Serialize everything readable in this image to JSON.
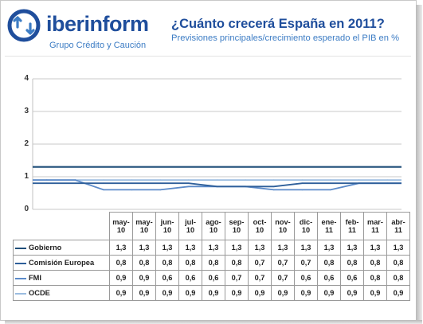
{
  "brand": {
    "name_bold": "iber",
    "name_rest": "inform",
    "tagline": "Grupo Crédito y Caución"
  },
  "header": {
    "title": "¿Cuánto crecerá España en 2011?",
    "subtitle": "Previsiones principales/crecimiento esperado el PIB en %"
  },
  "colors": {
    "brand": "#1f4e9c",
    "accent": "#3c7cc4"
  },
  "chart_data": {
    "type": "line",
    "title": "¿Cuánto crecerá España en 2011?",
    "subtitle": "Previsiones principales/crecimiento esperado el PIB en %",
    "ylim": [
      0,
      4
    ],
    "yticks": [
      "0",
      "1",
      "2",
      "3",
      "4"
    ],
    "grid": true,
    "legend": "table",
    "categories": [
      [
        "may-",
        "10"
      ],
      [
        "may-",
        "10"
      ],
      [
        "jun-",
        "10"
      ],
      [
        "jul-",
        "10"
      ],
      [
        "ago-",
        "10"
      ],
      [
        "sep-",
        "10"
      ],
      [
        "oct-",
        "10"
      ],
      [
        "nov-",
        "10"
      ],
      [
        "dic-",
        "10"
      ],
      [
        "ene-",
        "11"
      ],
      [
        "feb-",
        "11"
      ],
      [
        "mar-",
        "11"
      ],
      [
        "abr-",
        "11"
      ]
    ],
    "series": [
      {
        "name": "Gobierno",
        "color": "#1f4e79",
        "values": [
          1.3,
          1.3,
          1.3,
          1.3,
          1.3,
          1.3,
          1.3,
          1.3,
          1.3,
          1.3,
          1.3,
          1.3,
          1.3
        ],
        "labels": [
          "1,3",
          "1,3",
          "1,3",
          "1,3",
          "1,3",
          "1,3",
          "1,3",
          "1,3",
          "1,3",
          "1,3",
          "1,3",
          "1,3",
          "1,3"
        ]
      },
      {
        "name": "Comisión Europea",
        "color": "#2e5f9a",
        "values": [
          0.8,
          0.8,
          0.8,
          0.8,
          0.8,
          0.8,
          0.7,
          0.7,
          0.7,
          0.8,
          0.8,
          0.8,
          0.8
        ],
        "labels": [
          "0,8",
          "0,8",
          "0,8",
          "0,8",
          "0,8",
          "0,8",
          "0,7",
          "0,7",
          "0,7",
          "0,8",
          "0,8",
          "0,8",
          "0,8"
        ]
      },
      {
        "name": "FMI",
        "color": "#5b8ac9",
        "values": [
          0.9,
          0.9,
          0.6,
          0.6,
          0.6,
          0.7,
          0.7,
          0.7,
          0.6,
          0.6,
          0.6,
          0.8,
          0.8
        ],
        "labels": [
          "0,9",
          "0,9",
          "0,6",
          "0,6",
          "0,6",
          "0,7",
          "0,7",
          "0,7",
          "0,6",
          "0,6",
          "0,6",
          "0,8",
          "0,8"
        ]
      },
      {
        "name": "OCDE",
        "color": "#9bbce0",
        "values": [
          0.9,
          0.9,
          0.9,
          0.9,
          0.9,
          0.9,
          0.9,
          0.9,
          0.9,
          0.9,
          0.9,
          0.9,
          0.9
        ],
        "labels": [
          "0,9",
          "0,9",
          "0,9",
          "0,9",
          "0,9",
          "0,9",
          "0,9",
          "0,9",
          "0,9",
          "0,9",
          "0,9",
          "0,9",
          "0,9"
        ]
      }
    ]
  }
}
